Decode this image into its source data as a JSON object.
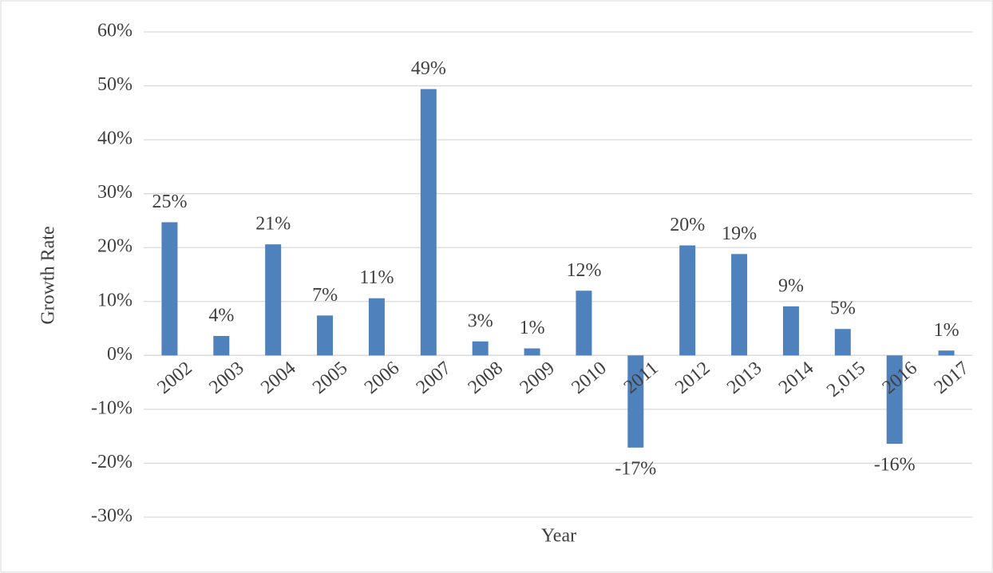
{
  "chart_data": {
    "type": "bar",
    "x_label": "Year",
    "y_label": "Growth Rate",
    "categories": [
      "2002",
      "2003",
      "2004",
      "2005",
      "2006",
      "2007",
      "2008",
      "2009",
      "2010",
      "2011",
      "2012",
      "2013",
      "2014",
      "2,015",
      "2016",
      "2017"
    ],
    "values": [
      24.7,
      3.6,
      20.6,
      7.4,
      10.6,
      49.4,
      2.6,
      1.3,
      12,
      -17.1,
      20.4,
      18.8,
      9.1,
      4.9,
      -16.4,
      0.9
    ],
    "value_labels": [
      "25%",
      "4%",
      "21%",
      "7%",
      "11%",
      "49%",
      "3%",
      "1%",
      "12%",
      "-17%",
      "20%",
      "19%",
      "9%",
      "5%",
      "-16%",
      "1%"
    ],
    "color": "#4f81bd",
    "ylim": [
      -30,
      60
    ],
    "yticks": [
      {
        "value": -30,
        "label": "-30%"
      },
      {
        "value": -20,
        "label": "-20%"
      },
      {
        "value": -10,
        "label": "-10%"
      },
      {
        "value": 0,
        "label": "0%"
      },
      {
        "value": 10,
        "label": "10%"
      },
      {
        "value": 20,
        "label": "20%"
      },
      {
        "value": 30,
        "label": "30%"
      },
      {
        "value": 40,
        "label": "40%"
      },
      {
        "value": 50,
        "label": "50%"
      },
      {
        "value": 60,
        "label": "60%"
      }
    ],
    "grid": true
  }
}
